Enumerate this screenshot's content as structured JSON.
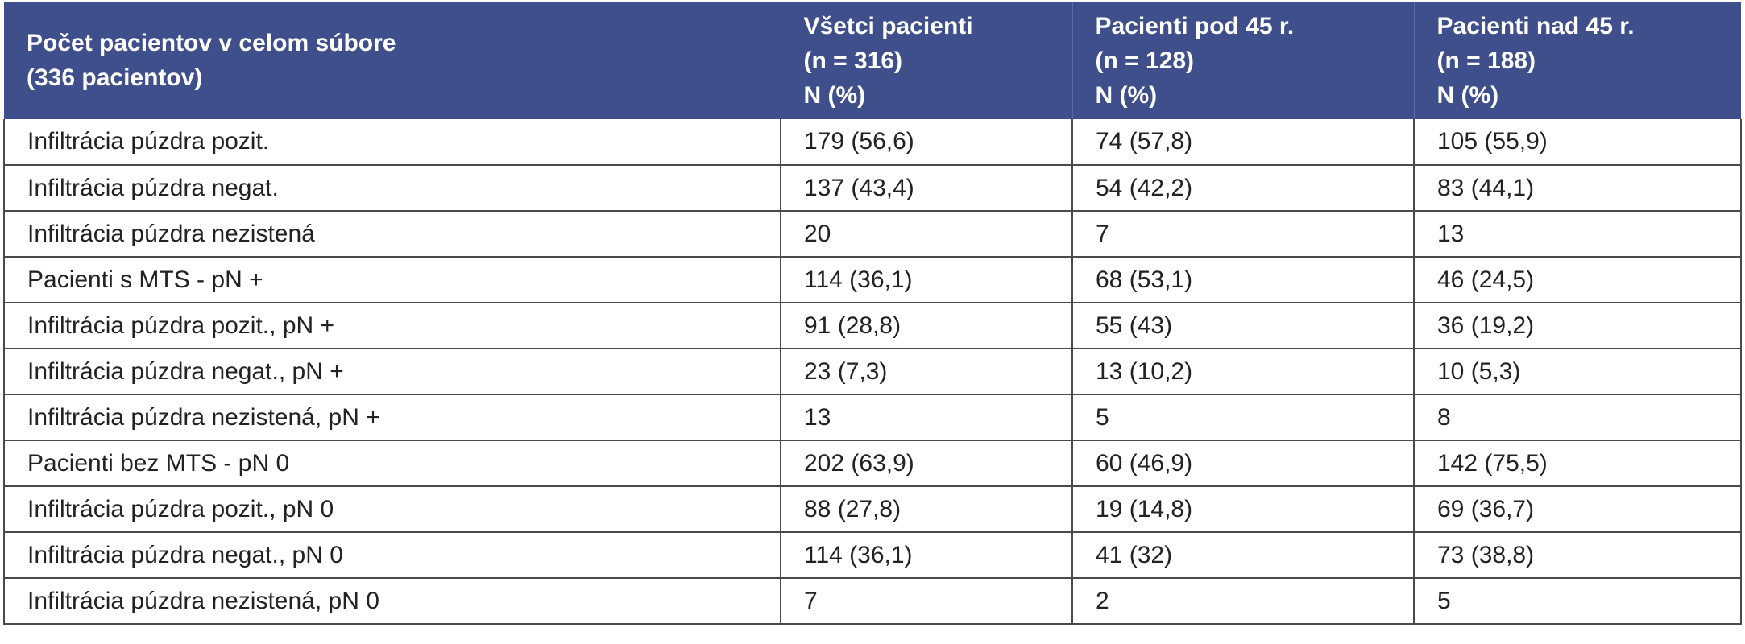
{
  "table": {
    "headers": [
      [
        "Počet pacientov v celom súbore",
        "(336 pacientov)"
      ],
      [
        "Všetci pacienti",
        "(n = 316)",
        "N (%)"
      ],
      [
        "Pacienti pod 45 r.",
        "(n = 128)",
        "N (%)"
      ],
      [
        "Pacienti nad 45 r.",
        "(n = 188)",
        "N (%)"
      ]
    ],
    "rows": [
      [
        "Infiltrácia púzdra pozit.",
        "179 (56,6)",
        "74 (57,8)",
        "105 (55,9)"
      ],
      [
        "Infiltrácia púzdra negat.",
        "137 (43,4)",
        "54 (42,2)",
        "83 (44,1)"
      ],
      [
        "Infiltrácia púzdra nezistená",
        "20",
        "7",
        "13"
      ],
      [
        "Pacienti s MTS - pN +",
        "114 (36,1)",
        "68 (53,1)",
        "46 (24,5)"
      ],
      [
        "Infiltrácia púzdra pozit., pN +",
        "91 (28,8)",
        "55 (43)",
        "36 (19,2)"
      ],
      [
        "Infiltrácia púzdra negat., pN +",
        "23 (7,3)",
        "13 (10,2)",
        "10 (5,3)"
      ],
      [
        "Infiltrácia púzdra nezistená, pN +",
        "13",
        "5",
        "8"
      ],
      [
        "Pacienti bez MTS - pN 0",
        "202 (63,9)",
        "60 (46,9)",
        "142 (75,5)"
      ],
      [
        "Infiltrácia púzdra pozit., pN 0",
        "88 (27,8)",
        "19 (14,8)",
        "69 (36,7)"
      ],
      [
        "Infiltrácia púzdra negat., pN 0",
        "114 (36,1)",
        "41 (32)",
        "73 (38,8)"
      ],
      [
        "Infiltrácia púzdra nezistená, pN 0",
        "7",
        "2",
        "5"
      ]
    ]
  },
  "colors": {
    "header_bg": "#3f4f8c",
    "header_text": "#ffffff",
    "border": "#4a4a4a"
  }
}
